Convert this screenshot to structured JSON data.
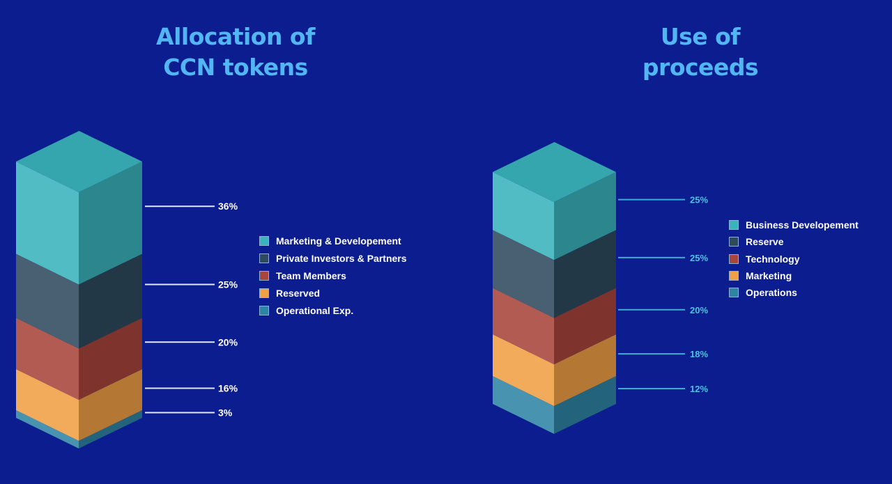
{
  "chart_data": [
    {
      "type": "bar",
      "style": "stacked 3d column",
      "title": "Allocation of\nCCN tokens",
      "label_color": "#ffffff",
      "segments": [
        {
          "name": "Marketing & Developement",
          "value": 36,
          "label": "36%",
          "color": "#3ab3bd"
        },
        {
          "name": "Private Investors & Partners",
          "value": 25,
          "label": "25%",
          "color": "#2f4a5e"
        },
        {
          "name": "Team Members",
          "value": 20,
          "label": "20%",
          "color": "#a8453c"
        },
        {
          "name": "Reserved",
          "value": 16,
          "label": "16%",
          "color": "#f0a045"
        },
        {
          "name": "Operational Exp.",
          "value": 3,
          "label": "3%",
          "color": "#2e84a5"
        }
      ]
    },
    {
      "type": "bar",
      "style": "stacked 3d column",
      "title": "Use of\nproceeds",
      "label_color": "#4fc1df",
      "segments": [
        {
          "name": "Business Developement",
          "value": 25,
          "label": "25%",
          "color": "#3ab3bd"
        },
        {
          "name": "Reserve",
          "value": 25,
          "label": "25%",
          "color": "#2f4a5e"
        },
        {
          "name": "Technology",
          "value": 20,
          "label": "20%",
          "color": "#a8453c"
        },
        {
          "name": "Marketing",
          "value": 18,
          "label": "18%",
          "color": "#f0a045"
        },
        {
          "name": "Operations",
          "value": 12,
          "label": "12%",
          "color": "#2e84a5"
        }
      ]
    }
  ]
}
